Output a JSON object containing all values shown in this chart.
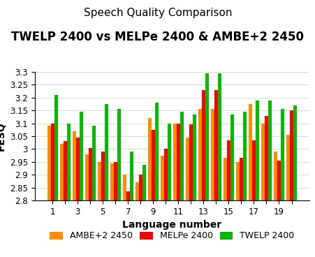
{
  "title": "Speech Quality Comparison",
  "subtitle": "TWELP 2400 vs MELPe 2400 & AMBE+2 2450",
  "xlabel": "Language number",
  "ylabel": "PESQ",
  "ylim": [
    2.8,
    3.3
  ],
  "yticks": [
    2.8,
    2.85,
    2.9,
    2.95,
    3.0,
    3.05,
    3.1,
    3.15,
    3.2,
    3.25,
    3.3
  ],
  "ytick_labels": [
    "2.8",
    "2.85",
    "2.9",
    "2.95",
    "3",
    "3.05",
    "3.1",
    "3.15",
    "3.2",
    "3.25",
    "3.3"
  ],
  "xtick_labels": [
    "1",
    "",
    "3",
    "",
    "5",
    "",
    "7",
    "",
    "9",
    "",
    "11",
    "",
    "13",
    "",
    "15",
    "",
    "17",
    "",
    "19",
    ""
  ],
  "n_langs": 20,
  "ambe": [
    3.09,
    3.02,
    3.07,
    2.98,
    2.95,
    2.945,
    2.9,
    2.87,
    3.12,
    2.975,
    3.1,
    3.045,
    3.155,
    3.155,
    2.965,
    2.95,
    3.175,
    3.1,
    2.99,
    3.055
  ],
  "melpe": [
    3.1,
    3.03,
    3.045,
    3.005,
    2.99,
    2.95,
    2.835,
    2.9,
    3.075,
    3.0,
    3.1,
    3.095,
    3.23,
    3.23,
    3.035,
    2.965,
    3.035,
    3.13,
    2.955,
    3.15
  ],
  "twelp": [
    3.21,
    3.1,
    3.145,
    3.09,
    3.175,
    3.155,
    2.99,
    2.94,
    3.18,
    3.1,
    3.145,
    3.135,
    3.295,
    3.295,
    3.135,
    3.145,
    3.19,
    3.19,
    3.155,
    3.17
  ],
  "color_ambe": "#FF8C00",
  "color_melpe": "#FF0000",
  "color_twelp": "#00BB00",
  "legend_labels": [
    "AMBE+2 2450",
    "MELPe 2400",
    "TWELP 2400"
  ],
  "bar_width": 0.28,
  "title_fontsize": 11,
  "subtitle_fontsize": 12,
  "axis_label_fontsize": 10,
  "tick_fontsize": 8.5,
  "legend_fontsize": 9
}
